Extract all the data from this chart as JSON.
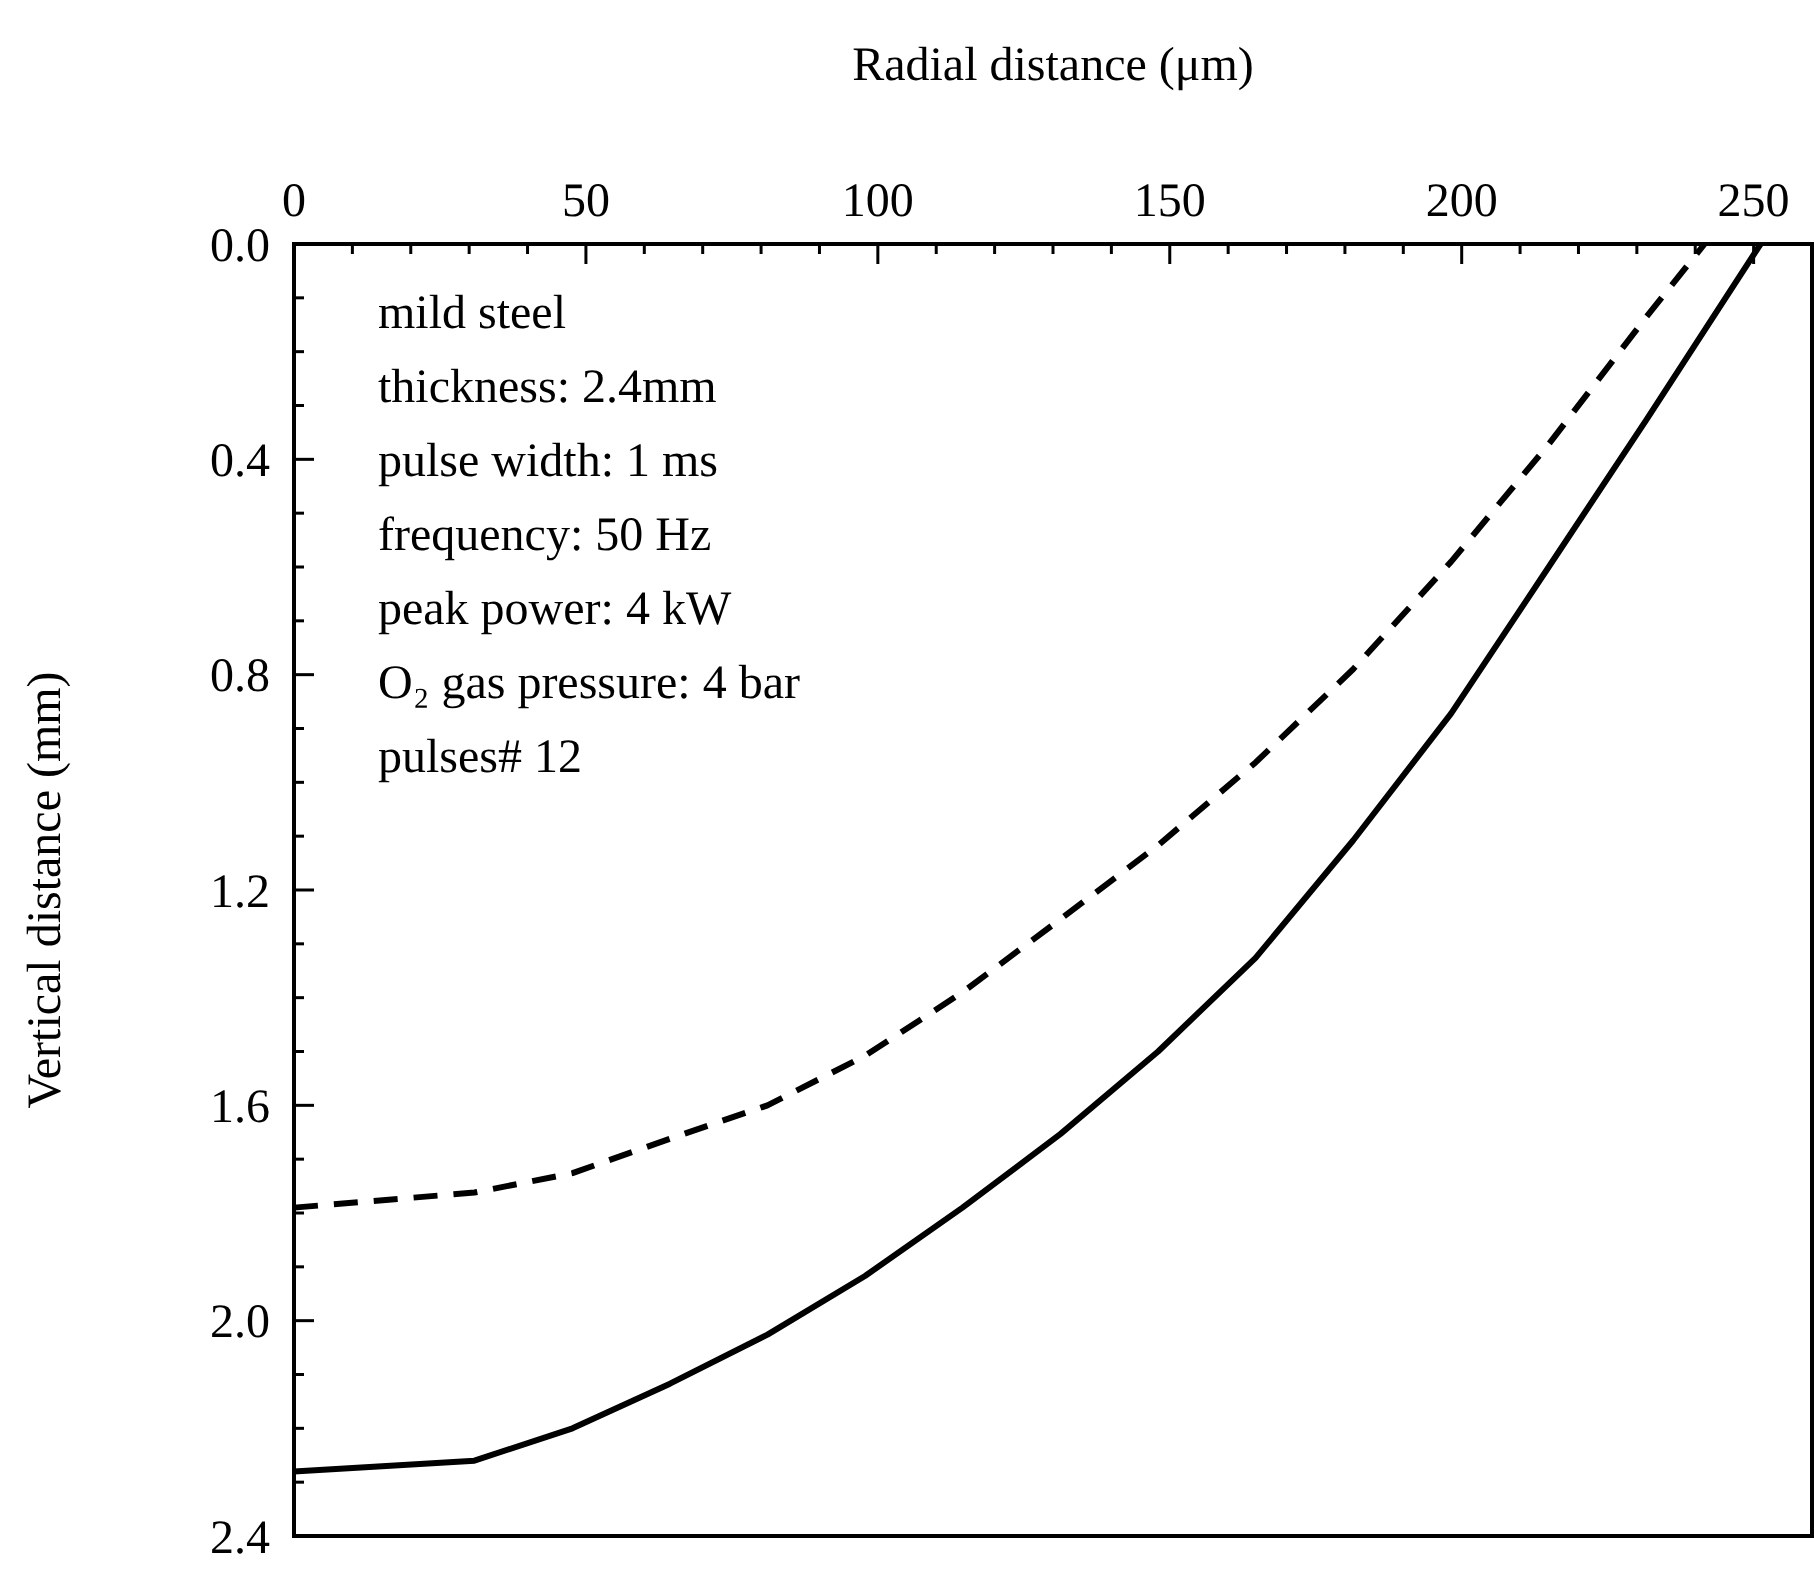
{
  "chart_data": {
    "type": "line",
    "xlabel": "Radial distance (μm)",
    "ylabel": "Vertical distance (mm)",
    "xlim": [
      0,
      260
    ],
    "xticks": [
      0,
      {
        "value": 10,
        "label": null
      },
      {
        "value": 20,
        "label": null
      },
      {
        "value": 30,
        "label": null
      },
      {
        "value": 40,
        "label": null
      },
      50,
      {
        "value": 60,
        "label": null
      },
      {
        "value": 70,
        "label": null
      },
      {
        "value": 80,
        "label": null
      },
      {
        "value": 90,
        "label": null
      },
      100,
      {
        "value": 110,
        "label": null
      },
      {
        "value": 120,
        "label": null
      },
      {
        "value": 130,
        "label": null
      },
      {
        "value": 140,
        "label": null
      },
      150,
      {
        "value": 160,
        "label": null
      },
      {
        "value": 170,
        "label": null
      },
      {
        "value": 180,
        "label": null
      },
      {
        "value": 190,
        "label": null
      },
      200,
      {
        "value": 210,
        "label": null
      },
      {
        "value": 220,
        "label": null
      },
      {
        "value": 230,
        "label": null
      },
      {
        "value": 240,
        "label": null
      },
      250,
      {
        "value": 260,
        "label": null
      }
    ],
    "ylim": [
      2.4,
      0
    ],
    "yticks": [
      {
        "value": 0,
        "label": "0.0"
      },
      {
        "value": 0.1,
        "label": null
      },
      {
        "value": 0.2,
        "label": null
      },
      {
        "value": 0.3,
        "label": null
      },
      0.4,
      {
        "value": 0.5,
        "label": null
      },
      {
        "value": 0.6,
        "label": null
      },
      {
        "value": 0.7,
        "label": null
      },
      0.8,
      {
        "value": 0.9,
        "label": null
      },
      {
        "value": 1.0,
        "label": null
      },
      {
        "value": 1.1,
        "label": null
      },
      1.2,
      {
        "value": 1.3,
        "label": null
      },
      {
        "value": 1.4,
        "label": null
      },
      {
        "value": 1.5,
        "label": null
      },
      1.6,
      {
        "value": 1.7,
        "label": null
      },
      {
        "value": 1.8,
        "label": null
      },
      {
        "value": 1.9,
        "label": null
      },
      {
        "value": 2.0,
        "label": "2.0"
      },
      {
        "value": 2.1,
        "label": null
      },
      {
        "value": 2.2,
        "label": null
      },
      {
        "value": 2.3,
        "label": null
      },
      2.4
    ],
    "grid": false,
    "marker": "none",
    "annotations": [
      "mild steel",
      "thickness: 2.4mm",
      "pulse width: 1 ms",
      "frequency: 50 Hz",
      "peak power: 4 kW",
      "O₂ gas pressure: 4 bar",
      "pulses# 12"
    ],
    "series": [
      {
        "color": "#000000",
        "line_style": "dashed",
        "x": [
          0,
          30.9,
          47.7,
          64.4,
          81.1,
          97.8,
          114.5,
          131.3,
          148,
          164.7,
          181.4,
          198.2,
          214.9,
          231.6,
          241.6
        ],
        "values": [
          1.79,
          1.762,
          1.726,
          1.662,
          1.6,
          1.508,
          1.39,
          1.254,
          1.117,
          0.963,
          0.79,
          0.59,
          0.372,
          0.136,
          0
        ]
      },
      {
        "color": "#000000",
        "line_style": "solid",
        "x": [
          0,
          30.9,
          47.7,
          64.4,
          81.1,
          97.8,
          114.5,
          131.3,
          148,
          164.7,
          181.4,
          198.2,
          214.9,
          231.6,
          251.2
        ],
        "values": [
          2.28,
          2.26,
          2.2,
          2.117,
          2.026,
          1.917,
          1.79,
          1.653,
          1.5,
          1.326,
          1.108,
          0.872,
          0.6,
          0.327,
          0
        ]
      }
    ]
  }
}
